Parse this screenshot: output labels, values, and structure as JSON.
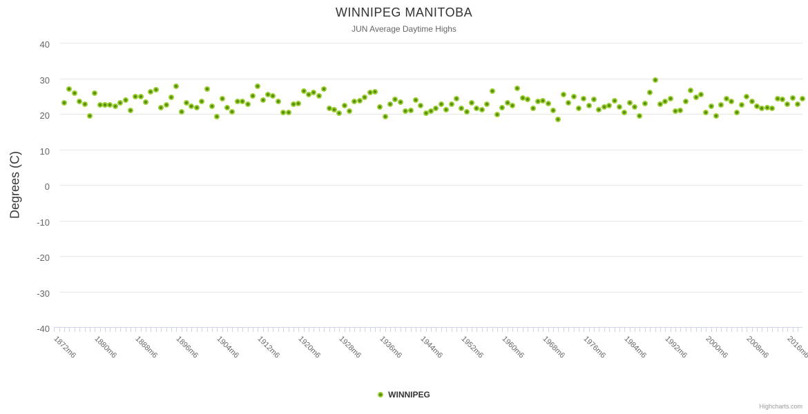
{
  "header": {
    "title": "WINNIPEG MANITOBA",
    "subtitle": "JUN Average Daytime Highs"
  },
  "legend": {
    "items": [
      {
        "label": "WINNIPEG"
      }
    ]
  },
  "credits_label": "Highcharts.com",
  "colors": {
    "marker_fill": "#568c0a",
    "marker_line": "#9acd32",
    "gridline": "#e6e6e6",
    "axis_line": "#ccd6eb",
    "title_text": "#333333",
    "subtitle_text": "#666666",
    "axis_label_text": "#666666"
  },
  "chart_data": {
    "type": "scatter",
    "title": "WINNIPEG MANITOBA",
    "subtitle": "JUN Average Daytime Highs",
    "xlabel": "",
    "ylabel": "Degrees (C)",
    "ylim": [
      -40,
      40
    ],
    "ytick_interval": 10,
    "ytick_labels": [
      "40",
      "30",
      "20",
      "10",
      "0",
      "-10",
      "-20",
      "-30",
      "-40"
    ],
    "grid": true,
    "legend_position": "bottom-center",
    "x_minor_tick_every": 1,
    "xtick_label_years": [
      1872,
      1880,
      1888,
      1896,
      1904,
      1912,
      1920,
      1928,
      1936,
      1944,
      1952,
      1960,
      1968,
      1976,
      1984,
      1992,
      2000,
      2008,
      2016
    ],
    "xtick_label_suffix": "m6",
    "x_axis_start_year": 1870,
    "x_axis_end_year": 2017,
    "series": [
      {
        "name": "WINNIPEG",
        "x_start_year": 1872,
        "x_step_years": 1,
        "month": 6,
        "y": [
          23.2,
          27.0,
          25.9,
          23.5,
          22.7,
          19.4,
          25.9,
          22.6,
          22.6,
          22.6,
          22.3,
          23.2,
          24.0,
          21.1,
          24.9,
          25.0,
          23.3,
          26.2,
          26.8,
          21.8,
          22.6,
          24.7,
          27.8,
          20.6,
          23.2,
          22.3,
          21.8,
          23.5,
          27.0,
          22.3,
          19.3,
          24.3,
          21.8,
          20.7,
          23.6,
          23.5,
          22.7,
          25.1,
          27.9,
          23.9,
          25.5,
          25.1,
          23.6,
          20.4,
          20.5,
          22.8,
          22.9,
          26.4,
          25.5,
          26.0,
          25.1,
          27.0,
          21.6,
          21.2,
          20.3,
          22.4,
          20.9,
          23.6,
          23.8,
          24.8,
          26.0,
          26.2,
          22.0,
          19.3,
          22.7,
          24.1,
          23.4,
          20.9,
          21.1,
          23.9,
          22.4,
          20.3,
          20.9,
          21.6,
          22.7,
          21.2,
          22.7,
          24.3,
          21.6,
          20.7,
          23.2,
          21.6,
          21.2,
          22.7,
          26.4,
          19.9,
          21.8,
          23.2,
          22.4,
          27.3,
          24.5,
          24.1,
          21.6,
          23.5,
          23.8,
          22.9,
          21.0,
          18.5,
          25.5,
          23.2,
          24.9,
          21.6,
          24.3,
          22.4,
          24.1,
          21.3,
          22.0,
          22.4,
          23.7,
          22.1,
          20.4,
          23.2,
          22.1,
          19.4,
          22.9,
          26.0,
          29.5,
          22.7,
          23.6,
          24.3,
          20.9,
          21.1,
          23.5,
          26.7,
          24.8,
          25.5,
          20.4,
          22.2,
          19.5,
          22.5,
          24.3,
          23.5,
          20.4,
          22.5,
          25.0,
          23.5,
          22.2,
          21.7,
          21.8,
          21.7,
          24.3,
          24.1,
          22.7,
          24.6,
          22.7,
          24.4
        ]
      }
    ]
  }
}
